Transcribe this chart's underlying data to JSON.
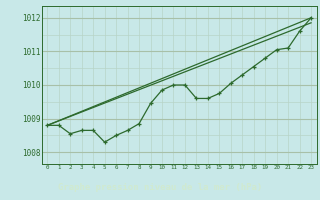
{
  "hours": [
    0,
    1,
    2,
    3,
    4,
    5,
    6,
    7,
    8,
    9,
    10,
    11,
    12,
    13,
    14,
    15,
    16,
    17,
    18,
    19,
    20,
    21,
    22,
    23
  ],
  "series_data": [
    1008.8,
    1008.8,
    1008.55,
    1008.65,
    1008.65,
    1008.3,
    1008.5,
    1008.65,
    1008.85,
    1009.45,
    1009.85,
    1010.0,
    1010.0,
    1009.6,
    1009.6,
    1009.75,
    1010.05,
    1010.3,
    1010.55,
    1010.8,
    1011.05,
    1011.1,
    1011.6,
    1012.0
  ],
  "trend1_x": [
    0,
    23
  ],
  "trend1_y": [
    1008.8,
    1012.0
  ],
  "trend2_x": [
    0,
    10,
    23
  ],
  "trend2_y": [
    1008.8,
    1009.85,
    1011.9
  ],
  "line_color": "#2d6a2d",
  "bg_color": "#c8e8e8",
  "grid_major_color": "#a8c0a8",
  "grid_minor_color": "#b8d4c8",
  "xlabel": "Graphe pression niveau de la mer (hPa)",
  "xlabel_bg": "#4a7a4a",
  "xlabel_fg": "#c8e8c8",
  "ytick_vals": [
    1008,
    1009,
    1010,
    1011,
    1012
  ],
  "xtick_vals": [
    0,
    1,
    2,
    3,
    4,
    5,
    6,
    7,
    8,
    9,
    10,
    11,
    12,
    13,
    14,
    15,
    16,
    17,
    18,
    19,
    20,
    21,
    22,
    23
  ],
  "ylim": [
    1007.65,
    1012.35
  ],
  "xlim": [
    -0.5,
    23.5
  ]
}
